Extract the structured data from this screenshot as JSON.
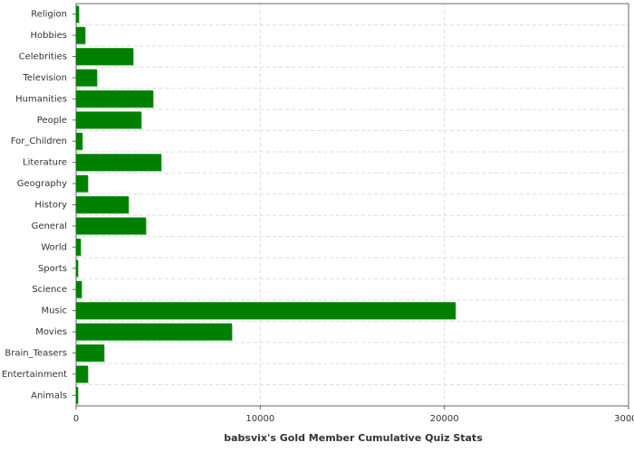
{
  "chart_data": {
    "type": "barh",
    "title": "babsvix's Gold Member Cumulative Quiz Stats",
    "categories": [
      "Religion",
      "Hobbies",
      "Celebrities",
      "Television",
      "Humanities",
      "People",
      "For_Children",
      "Literature",
      "Geography",
      "History",
      "General",
      "World",
      "Sports",
      "Science",
      "Music",
      "Movies",
      "Brain_Teasers",
      "Entertainment",
      "Animals"
    ],
    "values": [
      150,
      490,
      3100,
      1130,
      4180,
      3540,
      340,
      4620,
      640,
      2850,
      3790,
      250,
      100,
      300,
      20600,
      8460,
      1520,
      640,
      100
    ],
    "color": "#008000",
    "xlim": [
      0,
      30000
    ],
    "xticks": [
      0,
      10000,
      20000,
      30000
    ],
    "grid": true
  }
}
